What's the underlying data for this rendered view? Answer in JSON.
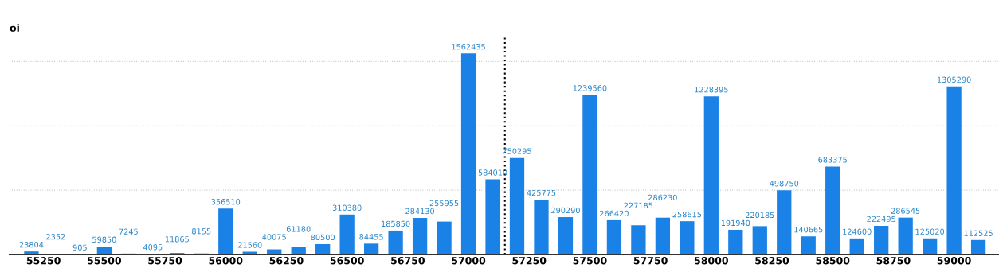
{
  "chart_data": {
    "type": "bar",
    "ylabel": "oi",
    "x": [
      55200,
      55300,
      55400,
      55500,
      55600,
      55700,
      55800,
      55900,
      56000,
      56100,
      56200,
      56300,
      56400,
      56500,
      56600,
      56700,
      56800,
      56900,
      57000,
      57100,
      57200,
      57300,
      57400,
      57500,
      57600,
      57700,
      57800,
      57900,
      58000,
      58100,
      58200,
      58300,
      58400,
      58500,
      58600,
      58700,
      58800,
      58900,
      59000,
      59100
    ],
    "values": [
      23804,
      2352,
      905,
      59850,
      7245,
      4095,
      11865,
      8155,
      356510,
      21560,
      40075,
      61180,
      80500,
      310380,
      84455,
      185850,
      284130,
      255955,
      1562435,
      584010,
      750295,
      425775,
      290290,
      1239560,
      266420,
      227185,
      286230,
      258615,
      1228395,
      191940,
      220185,
      498750,
      140665,
      683375,
      124600,
      222495,
      286545,
      125020,
      1305290,
      112525
    ],
    "color": "#1a82e6",
    "data_labels": true,
    "xlim": [
      55110,
      59185
    ],
    "xticks": [
      55250,
      55500,
      55750,
      56000,
      56250,
      56500,
      56750,
      57000,
      57250,
      57500,
      57750,
      58000,
      58250,
      58500,
      58750,
      59000
    ],
    "ylim": [
      0,
      1700000
    ],
    "yticks": [
      {
        "value": 0,
        "label": null
      },
      {
        "value": 500000,
        "label": null
      },
      {
        "value": 1000000,
        "label": null
      },
      {
        "value": 1500000,
        "label": null
      }
    ],
    "grid": "y",
    "ref_lines": [
      {
        "axis": "x",
        "value": 57150,
        "color": "#000000",
        "line_style": "dotted"
      }
    ]
  }
}
